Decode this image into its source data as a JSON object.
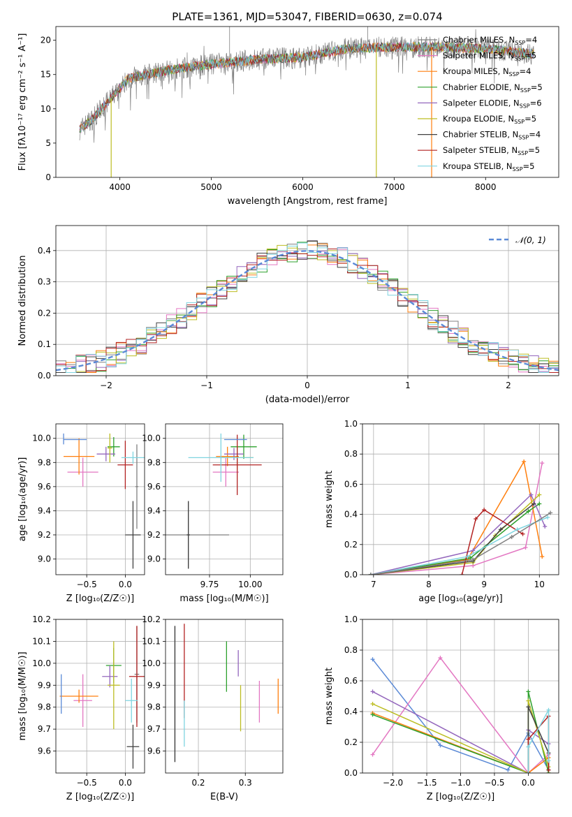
{
  "figure": {
    "title": "PLATE=1361, MJD=53047, FIBERID=0630, z=0.074",
    "model_colors": [
      "#808080",
      "#e377c2",
      "#ff7f0e",
      "#2ca02c",
      "#9467bd",
      "#bcbd22",
      "#404040",
      "#b22222",
      "#7fd4e0"
    ],
    "model_names": [
      "Chabrier MILES",
      "Salpeter MILES",
      "Kroupa MILES",
      "Chabrier ELODIE",
      "Salpeter ELODIE",
      "Kroupa ELODIE",
      "Chabrier STELIB",
      "Salpeter STELIB",
      "Kroupa STELIB"
    ]
  },
  "chart_data": [
    {
      "type": "line",
      "id": "spectrum",
      "xlabel": "wavelength [Angstrom, rest frame]",
      "ylabel": "Flux [fλ10⁻¹⁷ erg cm⁻² s⁻¹ A⁻¹]",
      "xlim": [
        3300,
        8800
      ],
      "ylim": [
        0,
        22
      ],
      "xticks": [
        4000,
        5000,
        6000,
        7000,
        8000
      ],
      "yticks": [
        0,
        5,
        10,
        15,
        20
      ],
      "legend": "top-right",
      "legend_entries": [
        "Chabrier MILES, N_SSP=4",
        "Salpeter MILES, N_SSP=5",
        "Kroupa MILES, N_SSP=4",
        "Chabrier ELODIE, N_SSP=5",
        "Salpeter ELODIE, N_SSP=6",
        "Kroupa ELODIE, N_SSP=5",
        "Chabrier STELIB, N_SSP=4",
        "Salpeter STELIB, N_SSP=5",
        "Kroupa STELIB, N_SSP=5"
      ],
      "continuum": {
        "x": [
          3560,
          3700,
          3900,
          4100,
          4300,
          4600,
          5000,
          5500,
          6000,
          6500,
          7000,
          7500,
          8000,
          8500
        ],
        "y": [
          7,
          8.5,
          11.5,
          14.5,
          15,
          15.8,
          16.5,
          17.2,
          17.5,
          18.8,
          19,
          19,
          18.8,
          18
        ]
      }
    },
    {
      "type": "histogram",
      "id": "residuals",
      "xlabel": "(data-model)/error",
      "ylabel": "Normed distribution",
      "xlim": [
        -2.5,
        2.5
      ],
      "ylim": [
        0,
        0.48
      ],
      "xticks": [
        -2,
        -1,
        0,
        1,
        2
      ],
      "yticks": [
        0.0,
        0.1,
        0.2,
        0.3,
        0.4
      ],
      "legend_entries": [
        "𝒩(0, 1)"
      ],
      "bin_width": 0.1
    },
    {
      "type": "scatter",
      "id": "age-vs-Z",
      "xlabel": "Z [log₁₀(Z/Z☉)]",
      "ylabel": "age  [log₁₀(age/yr)]",
      "xlim": [
        -0.9,
        0.25
      ],
      "ylim": [
        8.87,
        10.12
      ],
      "xticks": [
        -0.5,
        0.0
      ],
      "yticks": [
        9.0,
        9.2,
        9.4,
        9.6,
        9.8,
        10.0
      ]
    },
    {
      "type": "scatter",
      "id": "age-vs-mass",
      "xlabel": "mass [log₁₀(M/M☉)]",
      "ylabel": "",
      "xlim": [
        9.48,
        10.2
      ],
      "ylim": [
        8.87,
        10.12
      ],
      "xticks": [
        9.75,
        10.0
      ],
      "yticks": [
        9.0,
        9.2,
        9.4,
        9.6,
        9.8,
        10.0
      ]
    },
    {
      "type": "line",
      "id": "weight-vs-age",
      "xlabel": "age  [log₁₀(age/yr)]",
      "ylabel": "mass weight",
      "xlim": [
        6.8,
        10.35
      ],
      "ylim": [
        0,
        1
      ],
      "xticks": [
        7,
        8,
        9,
        10
      ],
      "yticks": [
        0.0,
        0.2,
        0.4,
        0.6,
        0.8,
        1.0
      ]
    },
    {
      "type": "scatter",
      "id": "mass-vs-Z",
      "xlabel": "Z [log₁₀(Z/Z☉)]",
      "ylabel": "mass [log₁₀(M/M☉)]",
      "xlim": [
        -0.9,
        0.25
      ],
      "ylim": [
        9.5,
        10.2
      ],
      "xticks": [
        -0.5,
        0.0
      ],
      "yticks": [
        9.6,
        9.7,
        9.8,
        9.9,
        10.0,
        10.1,
        10.2
      ]
    },
    {
      "type": "scatter",
      "id": "mass-vs-ebv",
      "xlabel": "E(B-V)",
      "ylabel": "",
      "xlim": [
        0.13,
        0.38
      ],
      "ylim": [
        9.5,
        10.2
      ],
      "xticks": [
        0.2,
        0.3
      ],
      "yticks": [
        9.6,
        9.7,
        9.8,
        9.9,
        10.0,
        10.1,
        10.2
      ]
    },
    {
      "type": "line",
      "id": "weight-vs-Z",
      "xlabel": "Z [log₁₀(Z/Z☉)]",
      "ylabel": "mass weight",
      "xlim": [
        -2.45,
        0.45
      ],
      "ylim": [
        0,
        1
      ],
      "xticks": [
        -2.0,
        -1.5,
        -1.0,
        -0.5,
        0.0
      ],
      "yticks": [
        0.0,
        0.2,
        0.4,
        0.6,
        0.8,
        1.0
      ]
    }
  ]
}
